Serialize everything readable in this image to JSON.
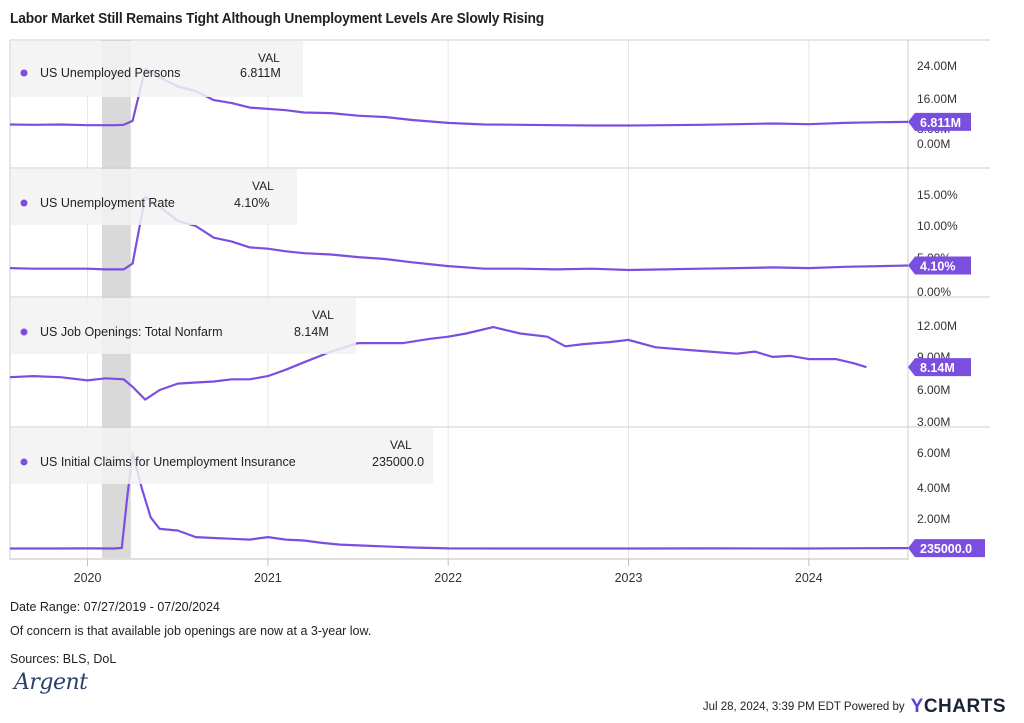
{
  "title": "Labor Market Still Remains Tight Although Unemployment Levels Are Slowly Rising",
  "colors": {
    "line": "#7a4fe0",
    "shade": "#d9d9d9",
    "grid": "#e6e6e6",
    "label_bg": "#f2f2f2",
    "axis_text": "#333333"
  },
  "chart_data": [
    {
      "type": "line",
      "name": "US Unemployed Persons",
      "val_header": "VAL",
      "value_label": "6.811M",
      "badge": "6.811M",
      "y_ticks": [
        "24.00M",
        "16.00M",
        "8.00M",
        "0.00M"
      ],
      "ylim": [
        0,
        24
      ],
      "unit": "M",
      "x": [
        2019.57,
        2019.7,
        2019.85,
        2020.0,
        2020.1,
        2020.15,
        2020.2,
        2020.25,
        2020.32,
        2020.4,
        2020.5,
        2020.6,
        2020.7,
        2020.8,
        2020.9,
        2021.0,
        2021.1,
        2021.2,
        2021.35,
        2021.5,
        2021.65,
        2021.8,
        2022.0,
        2022.2,
        2022.4,
        2022.6,
        2022.8,
        2023.0,
        2023.2,
        2023.4,
        2023.6,
        2023.8,
        2024.0,
        2024.2,
        2024.4,
        2024.55
      ],
      "y": [
        6.0,
        5.9,
        6.0,
        5.8,
        5.8,
        5.8,
        5.9,
        7.1,
        23.1,
        20.5,
        17.7,
        16.3,
        13.5,
        12.6,
        11.2,
        10.8,
        10.4,
        9.7,
        9.5,
        8.7,
        8.3,
        7.4,
        6.5,
        6.0,
        5.9,
        5.8,
        5.7,
        5.7,
        5.8,
        5.9,
        6.1,
        6.3,
        6.1,
        6.5,
        6.7,
        6.811
      ]
    },
    {
      "type": "line",
      "name": "US Unemployment Rate",
      "val_header": "VAL",
      "value_label": "4.10%",
      "badge": "4.10%",
      "y_ticks": [
        "15.00%",
        "10.00%",
        "5.00%",
        "0.00%"
      ],
      "ylim": [
        0,
        15
      ],
      "unit": "%",
      "x": [
        2019.57,
        2019.7,
        2019.85,
        2020.0,
        2020.1,
        2020.15,
        2020.2,
        2020.25,
        2020.32,
        2020.4,
        2020.5,
        2020.6,
        2020.7,
        2020.8,
        2020.9,
        2021.0,
        2021.1,
        2021.2,
        2021.35,
        2021.5,
        2021.65,
        2021.8,
        2022.0,
        2022.2,
        2022.4,
        2022.6,
        2022.8,
        2023.0,
        2023.2,
        2023.4,
        2023.6,
        2023.8,
        2024.0,
        2024.2,
        2024.4,
        2024.55
      ],
      "y": [
        3.7,
        3.6,
        3.6,
        3.6,
        3.5,
        3.5,
        3.5,
        4.4,
        14.7,
        13.2,
        11.0,
        10.2,
        8.4,
        7.8,
        6.9,
        6.7,
        6.3,
        6.0,
        5.8,
        5.4,
        5.1,
        4.6,
        4.0,
        3.6,
        3.6,
        3.5,
        3.6,
        3.4,
        3.5,
        3.6,
        3.7,
        3.8,
        3.7,
        3.9,
        4.0,
        4.1
      ]
    },
    {
      "type": "line",
      "name": "US Job Openings: Total Nonfarm",
      "val_header": "VAL",
      "value_label": "8.14M",
      "badge": "8.14M",
      "y_ticks": [
        "12.00M",
        "9.00M",
        "6.00M",
        "3.00M"
      ],
      "ylim": [
        3,
        12
      ],
      "unit": "M",
      "x": [
        2019.57,
        2019.7,
        2019.85,
        2020.0,
        2020.1,
        2020.2,
        2020.25,
        2020.32,
        2020.4,
        2020.5,
        2020.6,
        2020.7,
        2020.8,
        2020.9,
        2021.0,
        2021.1,
        2021.2,
        2021.35,
        2021.5,
        2021.6,
        2021.75,
        2021.9,
        2022.0,
        2022.1,
        2022.25,
        2022.4,
        2022.55,
        2022.65,
        2022.75,
        2022.9,
        2023.0,
        2023.15,
        2023.3,
        2023.45,
        2023.6,
        2023.7,
        2023.8,
        2023.9,
        2024.0,
        2024.15,
        2024.25,
        2024.32
      ],
      "y": [
        7.2,
        7.3,
        7.2,
        6.9,
        7.1,
        7.0,
        6.3,
        5.1,
        6.0,
        6.6,
        6.7,
        6.8,
        7.0,
        7.0,
        7.3,
        7.9,
        8.6,
        9.6,
        10.4,
        10.4,
        10.4,
        10.8,
        11.0,
        11.3,
        11.9,
        11.3,
        11.0,
        10.1,
        10.3,
        10.5,
        10.7,
        10.0,
        9.8,
        9.6,
        9.4,
        9.6,
        9.1,
        9.2,
        8.9,
        8.9,
        8.5,
        8.14
      ]
    },
    {
      "type": "line",
      "name": "US Initial Claims for Unemployment Insurance",
      "val_header": "VAL",
      "value_label": "235000.0",
      "badge": "235000.0",
      "y_ticks": [
        "6.00M",
        "4.00M",
        "2.00M"
      ],
      "ylim": [
        0,
        6
      ],
      "unit": "M",
      "x": [
        2019.57,
        2019.8,
        2020.0,
        2020.15,
        2020.19,
        2020.22,
        2020.25,
        2020.3,
        2020.35,
        2020.4,
        2020.5,
        2020.6,
        2020.7,
        2020.8,
        2020.9,
        2021.0,
        2021.1,
        2021.2,
        2021.3,
        2021.4,
        2021.6,
        2021.8,
        2022.0,
        2022.5,
        2023.0,
        2023.5,
        2024.0,
        2024.3,
        2024.55
      ],
      "y": [
        0.21,
        0.21,
        0.22,
        0.21,
        0.25,
        3.3,
        6.0,
        3.9,
        2.1,
        1.4,
        1.3,
        0.9,
        0.85,
        0.8,
        0.75,
        0.9,
        0.75,
        0.7,
        0.55,
        0.45,
        0.36,
        0.27,
        0.22,
        0.21,
        0.21,
        0.22,
        0.21,
        0.23,
        0.235
      ]
    }
  ],
  "x_axis": {
    "ticks": [
      "2020",
      "2021",
      "2022",
      "2023",
      "2024"
    ],
    "tick_values": [
      2020,
      2021,
      2022,
      2023,
      2024
    ],
    "range": [
      2019.57,
      2024.55
    ],
    "recession_shade": [
      2020.08,
      2020.24
    ]
  },
  "footer": {
    "date_range": "Date Range: 07/27/2019 - 07/20/2024",
    "note": "Of concern is that available job openings are now at a 3-year low.",
    "sources": "Sources: BLS, DoL",
    "timestamp": "Jul 28, 2024, 3:39 PM EDT Powered by",
    "brand_y": "Y",
    "brand_rest": "CHARTS",
    "logo_text": "Argent"
  }
}
